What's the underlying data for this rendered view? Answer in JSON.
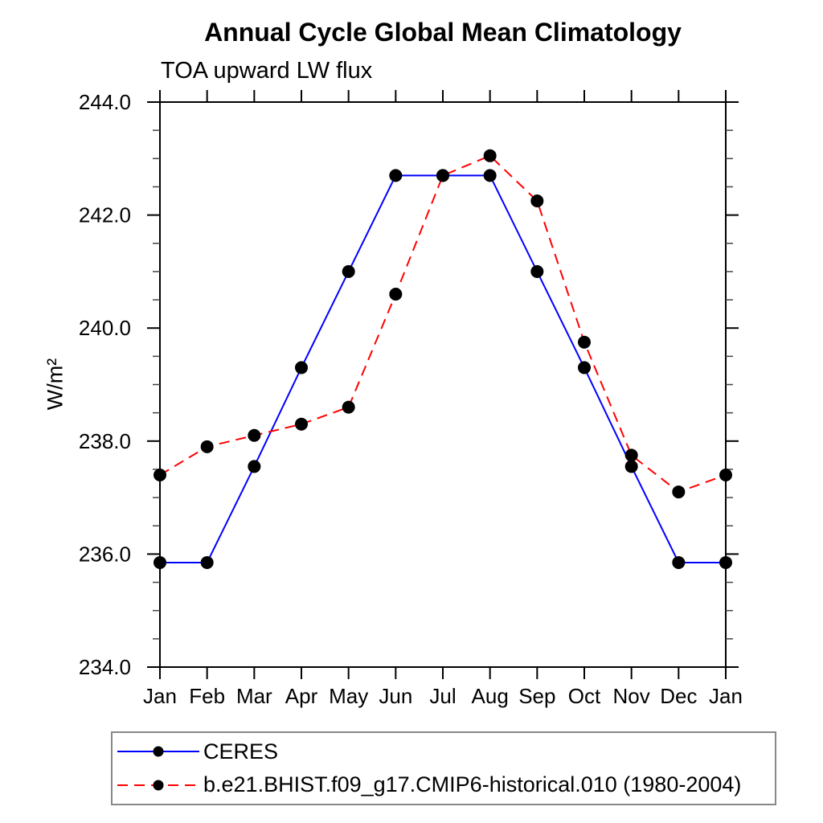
{
  "title": "Annual Cycle Global Mean Climatology",
  "subtitle": "TOA upward LW flux",
  "chart_data": {
    "type": "line",
    "title": "Annual Cycle Global Mean Climatology",
    "subtitle": "TOA upward LW flux",
    "xlabel": "",
    "ylabel": "W/m²",
    "categories": [
      "Jan",
      "Feb",
      "Mar",
      "Apr",
      "May",
      "Jun",
      "Jul",
      "Aug",
      "Sep",
      "Oct",
      "Nov",
      "Dec",
      "Jan"
    ],
    "ylim": [
      234.0,
      244.0
    ],
    "y_major_step": 2.0,
    "y_minor_step": 0.5,
    "y_major_tick_labels": [
      "244.0",
      "242.0",
      "240.0",
      "238.0",
      "236.0",
      "234.0"
    ],
    "grid": false,
    "legend_position": "bottom-left-box",
    "frame_color": "#000000",
    "series": [
      {
        "name": "CERES",
        "color": "#0000ff",
        "line_style": "solid",
        "marker": "filled-circle",
        "marker_color": "#000000",
        "values": [
          235.85,
          235.85,
          237.55,
          239.3,
          241.0,
          242.7,
          242.7,
          242.7,
          241.0,
          239.3,
          237.55,
          235.85,
          235.85
        ]
      },
      {
        "name": "b.e21.BHIST.f09_g17.CMIP6-historical.010 (1980-2004)",
        "color": "#ff0000",
        "line_style": "dashed",
        "marker": "filled-circle",
        "marker_color": "#000000",
        "values": [
          237.4,
          237.9,
          238.1,
          238.3,
          238.6,
          240.6,
          242.7,
          243.05,
          242.25,
          239.75,
          237.75,
          237.1,
          237.4
        ]
      }
    ]
  }
}
